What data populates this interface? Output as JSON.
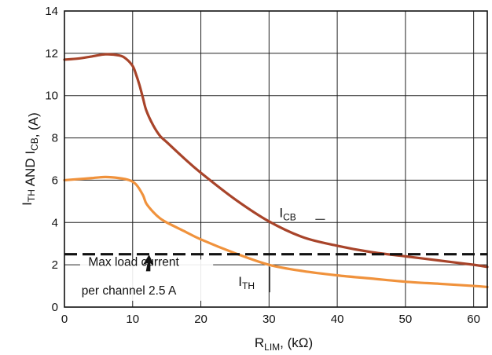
{
  "chart_data": {
    "type": "line",
    "xlabel": {
      "main": "R",
      "sub": "LIM",
      "suffix": ", (kΩ)"
    },
    "ylabel": {
      "parts": [
        {
          "text": "I",
          "sub": "TH"
        },
        {
          "text": " AND I",
          "sub": "CB"
        },
        {
          "text": ", (A)",
          "sub": ""
        }
      ]
    },
    "xlim": [
      0,
      62
    ],
    "ylim": [
      0,
      14
    ],
    "grid": true,
    "xticks": [
      0,
      10,
      20,
      30,
      40,
      50,
      60
    ],
    "yticks": [
      0,
      2,
      4,
      6,
      8,
      10,
      12,
      14
    ],
    "series": [
      {
        "name": "ICB",
        "label": {
          "main": "I",
          "sub": "CB"
        },
        "color": "#a8442a",
        "x": [
          0,
          2,
          4,
          6,
          8,
          9,
          10,
          10.5,
          11,
          11.5,
          12,
          13,
          14,
          15,
          17.5,
          20,
          25,
          30,
          35,
          40,
          45,
          50,
          55,
          60,
          62
        ],
        "y": [
          11.7,
          11.75,
          11.85,
          11.95,
          11.9,
          11.75,
          11.4,
          11.0,
          10.5,
          9.9,
          9.3,
          8.6,
          8.1,
          7.8,
          7.05,
          6.35,
          5.1,
          4.05,
          3.3,
          2.9,
          2.6,
          2.4,
          2.2,
          2.0,
          1.9
        ]
      },
      {
        "name": "ITH",
        "label": {
          "main": "I",
          "sub": "TH"
        },
        "color": "#f0923c",
        "x": [
          0,
          2,
          4,
          6,
          8,
          9.5,
          10.5,
          11.5,
          12,
          13,
          14,
          15,
          17.5,
          20,
          25,
          30,
          35,
          40,
          45,
          50,
          55,
          60,
          62
        ],
        "y": [
          6.0,
          6.05,
          6.1,
          6.15,
          6.1,
          6.0,
          5.8,
          5.3,
          4.9,
          4.5,
          4.2,
          4.0,
          3.6,
          3.2,
          2.55,
          2.0,
          1.7,
          1.5,
          1.35,
          1.2,
          1.1,
          1.0,
          0.95
        ]
      }
    ],
    "reference_line": {
      "y": 2.5,
      "style": "dashed",
      "color": "#111111"
    },
    "annotations": [
      {
        "lines": [
          "Max load current",
          "per channel 2.5 A"
        ]
      }
    ]
  }
}
